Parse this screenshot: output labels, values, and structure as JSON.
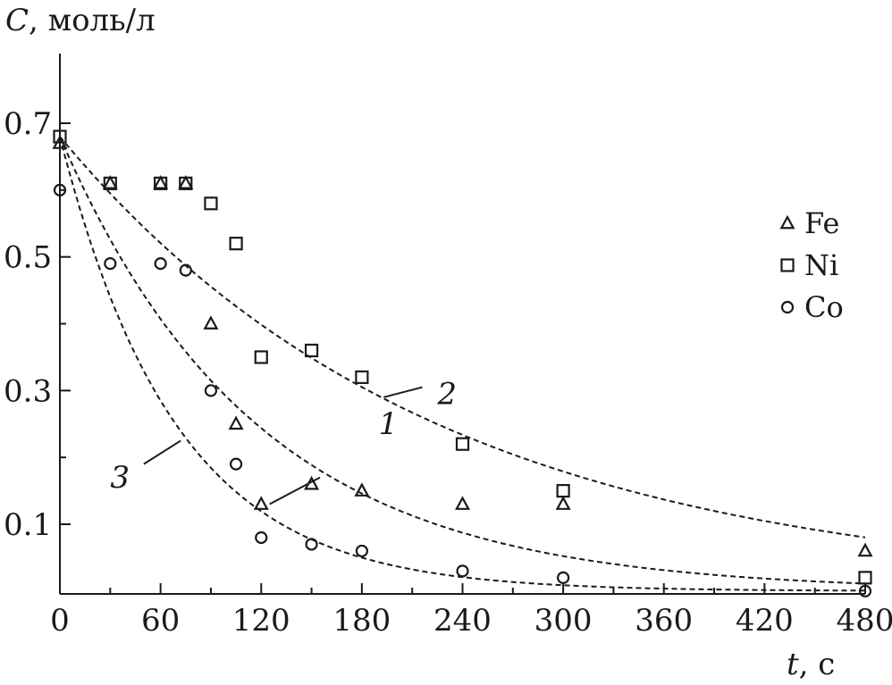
{
  "chart_data": {
    "type": "scatter",
    "ylabel_italic": "C",
    "ylabel_rest": ", моль/л",
    "xlabel_italic": "t",
    "xlabel_rest": ", с",
    "xlim": [
      0,
      480
    ],
    "ylim": [
      0,
      0.78
    ],
    "x_ticks": [
      0,
      60,
      120,
      180,
      240,
      300,
      360,
      420,
      480
    ],
    "x_tick_labels": [
      "0",
      "60",
      "120",
      "180",
      "240",
      "300",
      "360",
      "420",
      "480"
    ],
    "y_ticks": [
      0.1,
      0.3,
      0.5,
      0.7
    ],
    "y_tick_labels": [
      "0.1",
      "0.3",
      "0.5",
      "0.7"
    ],
    "y_minor_ticks": [
      0.2,
      0.4,
      0.6
    ],
    "grid": false,
    "legend_position": "right",
    "series": [
      {
        "name": "Fe",
        "marker": "triangle",
        "x": [
          0,
          30,
          60,
          75,
          90,
          105,
          120,
          150,
          180,
          240,
          300,
          480
        ],
        "y": [
          0.67,
          0.61,
          0.61,
          0.61,
          0.4,
          0.25,
          0.13,
          0.16,
          0.15,
          0.13,
          0.13,
          0.06
        ]
      },
      {
        "name": "Ni",
        "marker": "square",
        "x": [
          0,
          30,
          60,
          75,
          90,
          105,
          120,
          150,
          180,
          240,
          300,
          480
        ],
        "y": [
          0.68,
          0.61,
          0.61,
          0.61,
          0.58,
          0.52,
          0.35,
          0.36,
          0.32,
          0.22,
          0.15,
          0.02
        ]
      },
      {
        "name": "Co",
        "marker": "circle",
        "x": [
          0,
          30,
          60,
          75,
          90,
          105,
          120,
          150,
          180,
          240,
          300,
          480
        ],
        "y": [
          0.6,
          0.49,
          0.49,
          0.48,
          0.3,
          0.19,
          0.08,
          0.07,
          0.06,
          0.03,
          0.02,
          0.0
        ]
      }
    ],
    "curves": [
      {
        "label": "1",
        "c0": 0.68,
        "k": 0.00855,
        "label_x": 190,
        "label_y": 0.235,
        "leader_from": [
          125,
          0.13
        ],
        "leader_to": [
          155,
          0.17
        ]
      },
      {
        "label": "2",
        "c0": 0.68,
        "k": 0.00445,
        "label_x": 225,
        "label_y": 0.28,
        "leader_from": [
          193,
          0.29
        ],
        "leader_to": [
          216,
          0.305
        ]
      },
      {
        "label": "3",
        "c0": 0.68,
        "k": 0.0145,
        "label_x": 30,
        "label_y": 0.155,
        "leader_from": [
          50,
          0.19
        ],
        "leader_to": [
          72,
          0.225
        ]
      }
    ]
  }
}
